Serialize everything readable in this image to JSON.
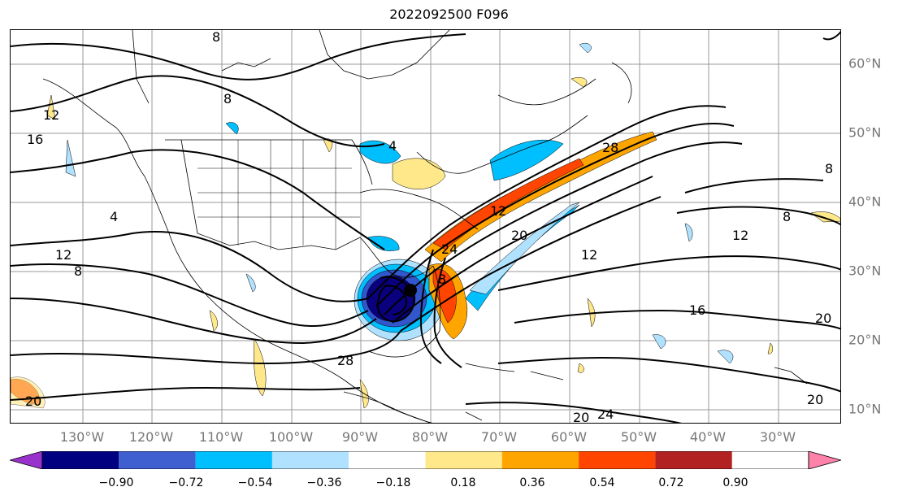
{
  "title": "2022092500 F096",
  "map": {
    "lat_labels": [
      "60°N",
      "50°N",
      "40°N",
      "30°N",
      "20°N",
      "10°N"
    ],
    "lon_labels": [
      "130°W",
      "120°W",
      "110°W",
      "100°W",
      "90°W",
      "80°W",
      "70°W",
      "60°W",
      "50°W",
      "40°W",
      "30°W"
    ],
    "contour_labels": [
      "8",
      "8",
      "16",
      "12",
      "4",
      "12",
      "8",
      "4",
      "24",
      "12",
      "20",
      "28",
      "12",
      "8",
      "12",
      "16",
      "20",
      "8",
      "20",
      "24",
      "20",
      "20",
      "8",
      "28"
    ],
    "fill_colors": {
      "neg_090": "#0a007d",
      "neg_072": "#3256cc",
      "neg_054": "#00bfff",
      "neg_036": "#b0e2ff",
      "pos_018": "#ffe88a",
      "pos_036": "#ffa500",
      "pos_054": "#ff4500",
      "pos_072": "#b22222",
      "pos_090": "#ff82ab"
    },
    "hurricane_marker": "black-dot"
  },
  "colorbar": {
    "ticks": [
      "−0.90",
      "−0.72",
      "−0.54",
      "−0.36",
      "−0.18",
      "0.18",
      "0.36",
      "0.54",
      "0.72",
      "0.90"
    ],
    "colors": [
      "#9932cc",
      "#000080",
      "#3f5fd0",
      "#00bfff",
      "#b0e2ff",
      "#ffffff",
      "#ffe88a",
      "#ffa500",
      "#ff4500",
      "#b22222",
      "#ff82ab"
    ]
  }
}
